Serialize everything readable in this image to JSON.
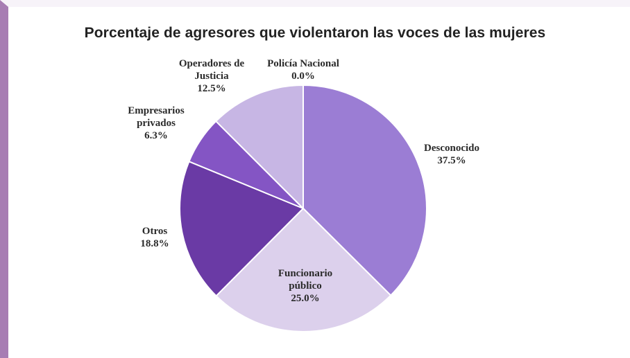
{
  "chart_data": {
    "type": "pie",
    "title": "Porcentaje de agresores que violentaron las voces de las mujeres",
    "slices": [
      {
        "label_lines": [
          "Desconocido"
        ],
        "percent_label": "37.5%",
        "value": 37.5,
        "color": "#9b7dd4"
      },
      {
        "label_lines": [
          "Funcionario",
          "público"
        ],
        "percent_label": "25.0%",
        "value": 25.0,
        "color": "#dcd0ec"
      },
      {
        "label_lines": [
          "Otros"
        ],
        "percent_label": "18.8%",
        "value": 18.8,
        "color": "#6a3aa5"
      },
      {
        "label_lines": [
          "Empresarios",
          "privados"
        ],
        "percent_label": "6.3%",
        "value": 6.3,
        "color": "#8455c4"
      },
      {
        "label_lines": [
          "Operadores de",
          "Justicia"
        ],
        "percent_label": "12.5%",
        "value": 12.5,
        "color": "#c7b6e4"
      },
      {
        "label_lines": [
          "Policía Nacional"
        ],
        "percent_label": "0.0%",
        "value": 0.0,
        "color": "#b49be0"
      }
    ],
    "start_angle_deg": 0,
    "direction": "clockwise",
    "legend": "none",
    "slice_border_color": "#ffffff"
  }
}
